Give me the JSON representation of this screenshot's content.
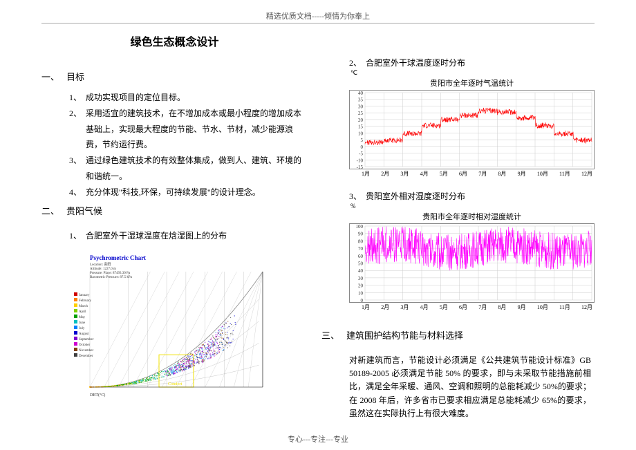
{
  "header": "精选优质文档-----倾情为你奉上",
  "footer": "专心---专注---专业",
  "title": "绿色生态概念设计",
  "section1": {
    "num": "一、",
    "label": "目标",
    "items": [
      {
        "n": "1、",
        "t": "成功实现项目的定位目标。"
      },
      {
        "n": "2、",
        "t": "采用适宜的建筑技术，在不增加成本或最小程度的增加成本基础上，实现最大程度的节能、节水、节材，减少能源浪费，节约运行费。"
      },
      {
        "n": "3、",
        "t": "通过绿色建筑技术的有效整体集成，做到人、建筑、环境的和谐统一。"
      },
      {
        "n": "4、",
        "t": "充分体现\"科技,环保，可持续发展\"的设计理念。"
      }
    ]
  },
  "section2": {
    "num": "二、",
    "label": "贵阳气候",
    "sub1": {
      "n": "1、",
      "t": "合肥室外干湿球温度在焓湿图上的分布"
    }
  },
  "psy": {
    "title": "Psychrometric Chart",
    "title_color": "#0000cc",
    "meta_lines": [
      "Location: 贵阳",
      "Altitude: 1227.0 m",
      "Pressure: Place: 87493.30 Pa",
      "Barometric Pressure: 87.5 kPa"
    ],
    "legend": [
      {
        "label": "January",
        "color": "#d00000"
      },
      {
        "label": "February",
        "color": "#ff8000"
      },
      {
        "label": "March",
        "color": "#ffd000"
      },
      {
        "label": "April",
        "color": "#80d000"
      },
      {
        "label": "May",
        "color": "#00a000"
      },
      {
        "label": "June",
        "color": "#00c0c0"
      },
      {
        "label": "July",
        "color": "#0080ff"
      },
      {
        "label": "August",
        "color": "#0000d0"
      },
      {
        "label": "September",
        "color": "#8000d0"
      },
      {
        "label": "October",
        "color": "#d000d0"
      },
      {
        "label": "November",
        "color": "#804000"
      },
      {
        "label": "December",
        "color": "#404040"
      }
    ],
    "curve_color": "#888888",
    "grid_color": "#bbbbbb",
    "dbt_label": "DBT(°C)",
    "comfort_label": "Comfort",
    "comfort_box_color": "#f0e000",
    "xlim": [
      0,
      45
    ],
    "ylim": [
      0,
      30
    ]
  },
  "right_sub2": {
    "n": "2、",
    "t": "合肥室外干球温度逐时分布"
  },
  "temp_chart": {
    "title": "贵阳市全年逐时气温统计",
    "yunit": "℃",
    "color": "#ff0000",
    "grid_color": "#cccccc",
    "ylim": [
      -15,
      40
    ],
    "ytick_step": 5,
    "months": [
      "1月",
      "2月",
      "3月",
      "4月",
      "5月",
      "6月",
      "7月",
      "8月",
      "9月",
      "10月",
      "11月",
      "12月"
    ],
    "series_min": [
      -3,
      -2,
      2,
      8,
      13,
      17,
      20,
      19,
      15,
      10,
      4,
      -1
    ],
    "series_max": [
      9,
      11,
      17,
      23,
      27,
      29,
      33,
      32,
      27,
      21,
      15,
      10
    ],
    "noise_amp": 4
  },
  "right_sub3": {
    "n": "3、",
    "t": "贵阳室外相对湿度逐时分布"
  },
  "hum_chart": {
    "title": "贵阳市全年逐时相对湿度统计",
    "yunit": "%",
    "color": "#ff00ff",
    "grid_color": "#cccccc",
    "ylim": [
      0,
      100
    ],
    "ytick_step": 10,
    "months": [
      "1月",
      "2月",
      "3月",
      "4月",
      "5月",
      "6月",
      "7月",
      "8月",
      "9月",
      "10月",
      "11月",
      "12月"
    ],
    "base_low": 45,
    "base_high": 95,
    "noise_amp": 25
  },
  "section3": {
    "num": "三、",
    "label": "建筑围护结构节能与材料选择",
    "para": "对新建筑而言，节能设计必须满足《公共建筑节能设计标准》GB 50189-2005 必须满足节能 50% 的要求，即与未采取节能措施前相比，满足全年采暖、通风、空调和照明的总能耗减少 50%的要求；在 2008 年后，许多省市已要求相应满足总能耗减少 65%的要求，虽然这在实际执行上有很大难度。"
  }
}
